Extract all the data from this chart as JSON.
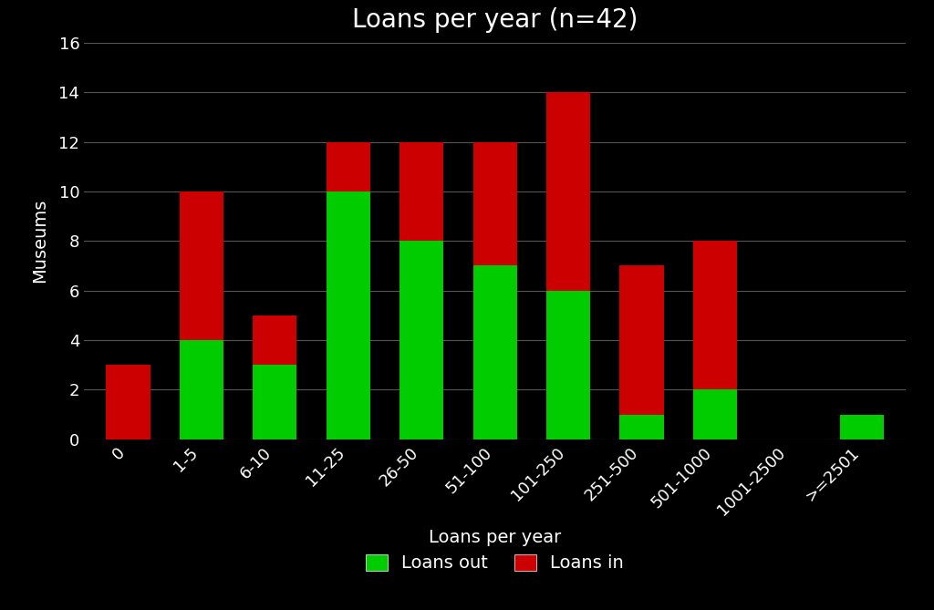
{
  "categories": [
    "0",
    "1-5",
    "6-10",
    "11-25",
    "26-50",
    "51-100",
    "101-250",
    "251-500",
    "501-1000",
    "1001-2500",
    ">=2501"
  ],
  "loans_out": [
    0,
    4,
    3,
    10,
    8,
    7,
    6,
    1,
    2,
    0,
    1
  ],
  "loans_in_additional": [
    3,
    6,
    2,
    2,
    4,
    5,
    8,
    6,
    6,
    0,
    0
  ],
  "color_out": "#00cc00",
  "color_in": "#cc0000",
  "title": "Loans per year (n=42)",
  "xlabel": "Loans per year",
  "ylabel": "Museums",
  "ylim": [
    0,
    16
  ],
  "yticks": [
    0,
    2,
    4,
    6,
    8,
    10,
    12,
    14,
    16
  ],
  "background_color": "#000000",
  "text_color": "#ffffff",
  "grid_color": "#555555",
  "title_fontsize": 20,
  "label_fontsize": 14,
  "tick_fontsize": 13,
  "legend_label_out": "Loans out",
  "legend_label_in": "Loans in",
  "xtick_rotation": 45,
  "bar_width": 0.6
}
